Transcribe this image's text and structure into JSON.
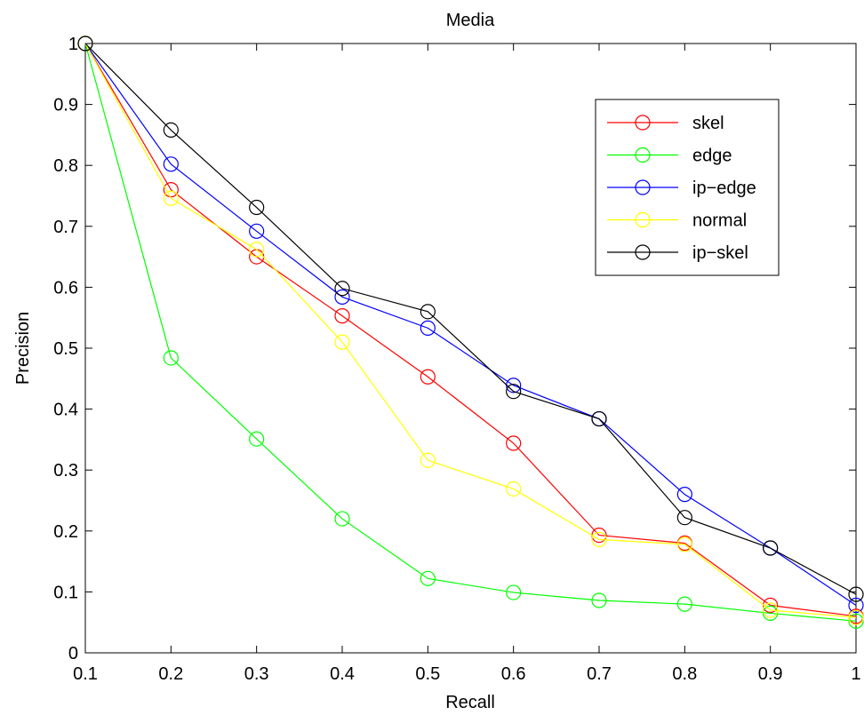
{
  "chart_data": {
    "type": "line",
    "title": "Media",
    "xlabel": "Recall",
    "ylabel": "Precision",
    "xlim": [
      0.1,
      1
    ],
    "ylim": [
      0,
      1
    ],
    "x_ticks": [
      "0.1",
      "0.2",
      "0.3",
      "0.4",
      "0.5",
      "0.6",
      "0.7",
      "0.8",
      "0.9",
      "1"
    ],
    "y_ticks": [
      "0",
      "0.1",
      "0.2",
      "0.3",
      "0.4",
      "0.5",
      "0.6",
      "0.7",
      "0.8",
      "0.9",
      "1"
    ],
    "grid": false,
    "marker": "circle",
    "legend_position": "top-right",
    "x": [
      0.1,
      0.2,
      0.3,
      0.4,
      0.5,
      0.6,
      0.7,
      0.8,
      0.9,
      1.0
    ],
    "series": [
      {
        "name": "skel",
        "color": "#ff0000",
        "values": [
          1.0,
          0.76,
          0.65,
          0.553,
          0.453,
          0.344,
          0.193,
          0.18,
          0.078,
          0.06
        ]
      },
      {
        "name": "edge",
        "color": "#00ff00",
        "values": [
          1.0,
          0.484,
          0.351,
          0.22,
          0.122,
          0.099,
          0.086,
          0.08,
          0.065,
          0.052
        ]
      },
      {
        "name": "ip−edge",
        "color": "#0000ff",
        "values": [
          1.0,
          0.802,
          0.692,
          0.584,
          0.533,
          0.439,
          0.384,
          0.26,
          0.172,
          0.078
        ]
      },
      {
        "name": "normal",
        "color": "#ffff00",
        "values": [
          1.0,
          0.746,
          0.662,
          0.51,
          0.316,
          0.269,
          0.186,
          0.178,
          0.07,
          0.058
        ]
      },
      {
        "name": "ip−skel",
        "color": "#000000",
        "values": [
          1.0,
          0.858,
          0.731,
          0.598,
          0.56,
          0.429,
          0.384,
          0.222,
          0.172,
          0.096
        ]
      }
    ]
  }
}
